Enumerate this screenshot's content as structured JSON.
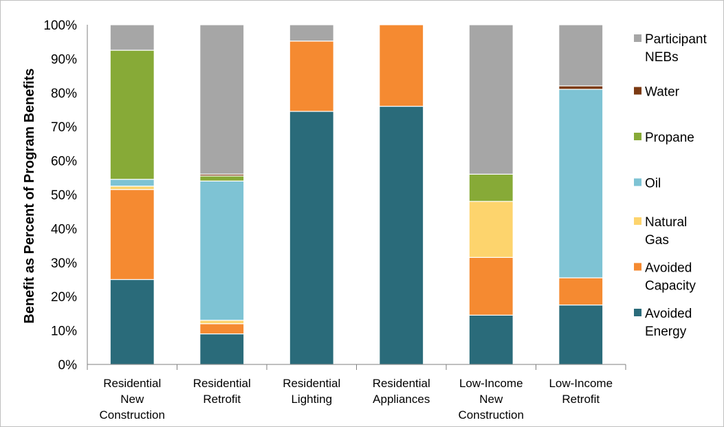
{
  "chart_data": {
    "type": "bar",
    "stacked": true,
    "ylabel": "Benefit as Percent of Program Benefits",
    "xlabel": "",
    "ylim": [
      0,
      100
    ],
    "y_ticks": [
      "0%",
      "10%",
      "20%",
      "30%",
      "40%",
      "50%",
      "60%",
      "70%",
      "80%",
      "90%",
      "100%"
    ],
    "categories": [
      [
        "Residential",
        "New",
        "Construction"
      ],
      [
        "Residential",
        "Retrofit"
      ],
      [
        "Residential",
        "Lighting"
      ],
      [
        "Residential",
        "Appliances"
      ],
      [
        "Low-Income",
        "New",
        "Construction"
      ],
      [
        "Low-Income",
        "Retrofit"
      ]
    ],
    "series": [
      {
        "name": "Avoided Energy",
        "legend_lines": [
          "Avoided",
          "Energy"
        ],
        "color": "#2a6b7a",
        "values": [
          25,
          9,
          74.5,
          76,
          14.5,
          17.5
        ]
      },
      {
        "name": "Avoided Capacity",
        "legend_lines": [
          "Avoided",
          "Capacity"
        ],
        "color": "#f58a31",
        "values": [
          26.5,
          3,
          20.7,
          24,
          17,
          8
        ]
      },
      {
        "name": "Natural Gas",
        "legend_lines": [
          "Natural",
          "Gas"
        ],
        "color": "#fdd46d",
        "values": [
          1,
          1,
          0,
          0,
          16.5,
          0
        ]
      },
      {
        "name": "Oil",
        "legend_lines": [
          "Oil"
        ],
        "color": "#7ec3d4",
        "values": [
          2,
          41,
          0,
          0,
          0,
          55.5
        ]
      },
      {
        "name": "Propane",
        "legend_lines": [
          "Propane"
        ],
        "color": "#87aa37",
        "values": [
          38,
          1.5,
          0,
          0,
          8,
          0
        ]
      },
      {
        "name": "Water",
        "legend_lines": [
          "Water"
        ],
        "color": "#7b3a12",
        "values": [
          0,
          0.5,
          0,
          0,
          0,
          1
        ]
      },
      {
        "name": "Participant NEBs",
        "legend_lines": [
          "Participant",
          "NEBs"
        ],
        "color": "#a6a6a6",
        "values": [
          7.5,
          44,
          4.8,
          0,
          44,
          18
        ]
      }
    ],
    "legend_position": "right",
    "grid": false
  }
}
